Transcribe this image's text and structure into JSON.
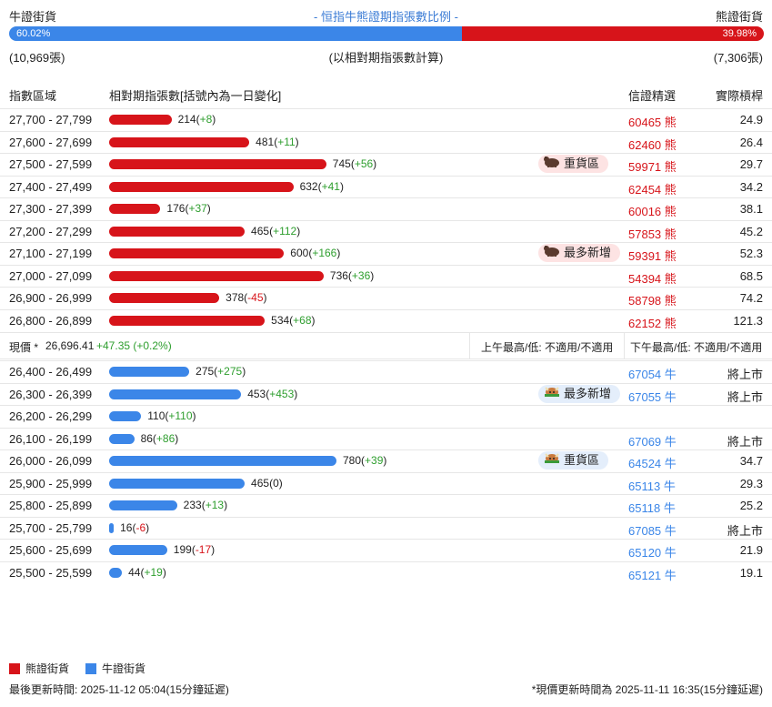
{
  "header": {
    "bull_title": "牛證街貨",
    "center_title": "- 恒指牛熊證期指張數比例 -",
    "bear_title": "熊證街貨",
    "bull_pct": "60.02%",
    "bear_pct": "39.98%",
    "bull_fraction": 0.6002,
    "bull_count": "(10,969張)",
    "bear_count": "(7,306張)",
    "note": "(以相對期指張數計算)"
  },
  "columns": {
    "range": "指數區域",
    "contracts": "相對期指張數[括號內為一日變化]",
    "code": "信證精選",
    "ratio": "實際槓桿"
  },
  "bear_rows": [
    {
      "range": "27,700 - 27,799",
      "count": "214",
      "change": "+8",
      "code": "60465",
      "type": "熊",
      "ratio": "24.9",
      "value": 214
    },
    {
      "range": "27,600 - 27,699",
      "count": "481",
      "change": "+11",
      "code": "62460",
      "type": "熊",
      "ratio": "26.4",
      "value": 481
    },
    {
      "range": "27,500 - 27,599",
      "count": "745",
      "change": "+56",
      "code": "59971",
      "type": "熊",
      "ratio": "29.7",
      "value": 745,
      "badge": "重貨區"
    },
    {
      "range": "27,400 - 27,499",
      "count": "632",
      "change": "+41",
      "code": "62454",
      "type": "熊",
      "ratio": "34.2",
      "value": 632
    },
    {
      "range": "27,300 - 27,399",
      "count": "176",
      "change": "+37",
      "code": "60016",
      "type": "熊",
      "ratio": "38.1",
      "value": 176
    },
    {
      "range": "27,200 - 27,299",
      "count": "465",
      "change": "+112",
      "code": "57853",
      "type": "熊",
      "ratio": "45.2",
      "value": 465
    },
    {
      "range": "27,100 - 27,199",
      "count": "600",
      "change": "+166",
      "code": "59391",
      "type": "熊",
      "ratio": "52.3",
      "value": 600,
      "badge": "最多新增"
    },
    {
      "range": "27,000 - 27,099",
      "count": "736",
      "change": "+36",
      "code": "54394",
      "type": "熊",
      "ratio": "68.5",
      "value": 736
    },
    {
      "range": "26,900 - 26,999",
      "count": "378",
      "change": "-45",
      "code": "58798",
      "type": "熊",
      "ratio": "74.2",
      "value": 378
    },
    {
      "range": "26,800 - 26,899",
      "count": "534",
      "change": "+68",
      "code": "62152",
      "type": "熊",
      "ratio": "121.3",
      "value": 534
    }
  ],
  "price": {
    "label": "現價 *",
    "value": "26,696.41",
    "change": "+47.35 (+0.2%)",
    "am": "上午最高/低: 不適用/不適用",
    "pm": "下午最高/低: 不適用/不適用"
  },
  "bull_rows": [
    {
      "range": "26,400 - 26,499",
      "count": "275",
      "change": "+275",
      "code": "67054",
      "type": "牛",
      "ratio": "將上市",
      "value": 275
    },
    {
      "range": "26,300 - 26,399",
      "count": "453",
      "change": "+453",
      "code": "67055",
      "type": "牛",
      "ratio": "將上市",
      "value": 453,
      "badge": "最多新增"
    },
    {
      "range": "26,200 - 26,299",
      "count": "110",
      "change": "+110",
      "code": "",
      "type": "",
      "ratio": "",
      "value": 110
    },
    {
      "range": "26,100 - 26,199",
      "count": "86",
      "change": "+86",
      "code": "67069",
      "type": "牛",
      "ratio": "將上市",
      "value": 86
    },
    {
      "range": "26,000 - 26,099",
      "count": "780",
      "change": "+39",
      "code": "64524",
      "type": "牛",
      "ratio": "34.7",
      "value": 780,
      "badge": "重貨區"
    },
    {
      "range": "25,900 - 25,999",
      "count": "465",
      "change": "0",
      "code": "65113",
      "type": "牛",
      "ratio": "29.3",
      "value": 465
    },
    {
      "range": "25,800 - 25,899",
      "count": "233",
      "change": "+13",
      "code": "65118",
      "type": "牛",
      "ratio": "25.2",
      "value": 233
    },
    {
      "range": "25,700 - 25,799",
      "count": "16",
      "change": "-6",
      "code": "67085",
      "type": "牛",
      "ratio": "將上市",
      "value": 16
    },
    {
      "range": "25,600 - 25,699",
      "count": "199",
      "change": "-17",
      "code": "65120",
      "type": "牛",
      "ratio": "21.9",
      "value": 199
    },
    {
      "range": "25,500 - 25,599",
      "count": "44",
      "change": "+19",
      "code": "65121",
      "type": "牛",
      "ratio": "19.1",
      "value": 44
    }
  ],
  "legend": {
    "bear": "熊證街貨",
    "bull": "牛證街貨"
  },
  "footer": {
    "left": "最後更新時間: 2025-11-12 05:04(15分鐘延遲)",
    "right": "*現價更新時間為 2025-11-11 16:35(15分鐘延遲)"
  },
  "colors": {
    "bear": "#d7141a",
    "bull": "#3b86e8",
    "positive": "#2e9e2e"
  }
}
